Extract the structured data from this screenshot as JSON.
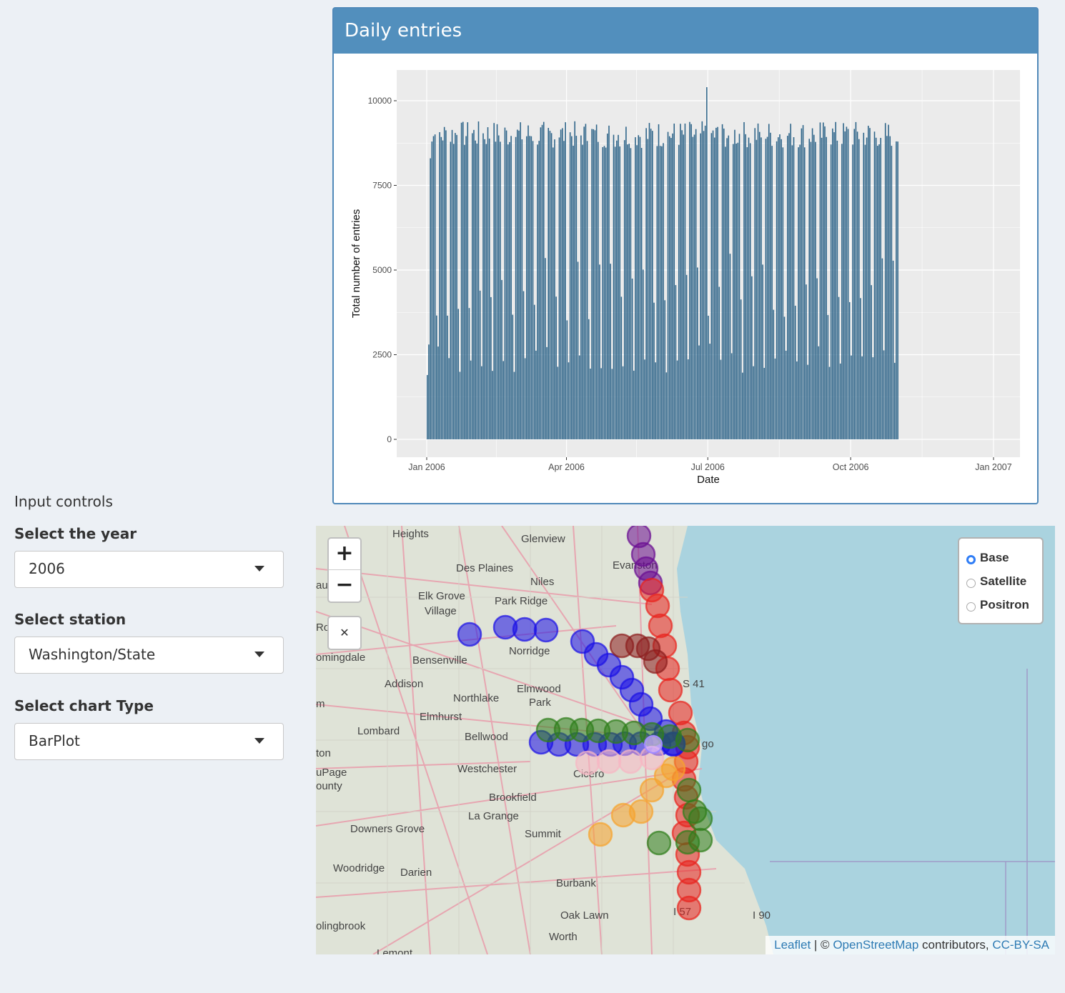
{
  "box": {
    "title": "Daily entries"
  },
  "controls": {
    "title": "Input controls",
    "year_label": "Select the year",
    "year_value": "2006",
    "station_label": "Select station",
    "station_value": "Washington/State",
    "chart_type_label": "Select chart Type",
    "chart_type_value": "BarPlot"
  },
  "map": {
    "zoom_in": "+",
    "zoom_out": "−",
    "reset_icon": "✕",
    "layers": [
      {
        "label": "Base",
        "selected": true
      },
      {
        "label": "Satellite",
        "selected": false
      },
      {
        "label": "Positron",
        "selected": false
      }
    ],
    "attribution": {
      "leaflet": "Leaflet",
      "sep1": " | © ",
      "osm": "OpenStreetMap",
      "contrib": " contributors, ",
      "license": "CC-BY-SA"
    },
    "places": [
      "Heights",
      "Glenview",
      "Des Plaines",
      "Niles",
      "Evanston",
      "Elk Grove",
      "Village",
      "Park Ridge",
      "Norridge",
      "Bensenville",
      "omingdale",
      "Addison",
      "Northlake",
      "Elmwood",
      "Park",
      "Elmhurst",
      "Lombard",
      "Bellwood",
      "ton",
      "Westchester",
      "Cicero",
      "go",
      "uPage",
      "ounty",
      "Brookfield",
      "La Grange",
      "Downers Grove",
      "Summit",
      "Woodridge",
      "Darien",
      "Burbank",
      "Oak Lawn",
      "olingbrook",
      "Worth",
      "Lemont",
      "S 41",
      "I 90",
      "I 57",
      "au",
      "Ro",
      "m"
    ]
  },
  "chart_data": {
    "type": "bar",
    "xlabel": "Date",
    "ylabel": "Total number of entries",
    "x_ticks": [
      "Jan 2006",
      "Apr 2006",
      "Jul 2006",
      "Oct 2006",
      "Jan 2007"
    ],
    "y_ticks": [
      0,
      2500,
      5000,
      7500,
      10000
    ],
    "ylim": [
      0,
      10500
    ],
    "date_range": [
      "2006-01-01",
      "2006-10-31"
    ],
    "weekday_level": 9000,
    "saturday_level": 4500,
    "sunday_level": 2400,
    "peak_value": 10400,
    "bar_color": "#2c6388",
    "panel_color": "#ebebeb"
  }
}
